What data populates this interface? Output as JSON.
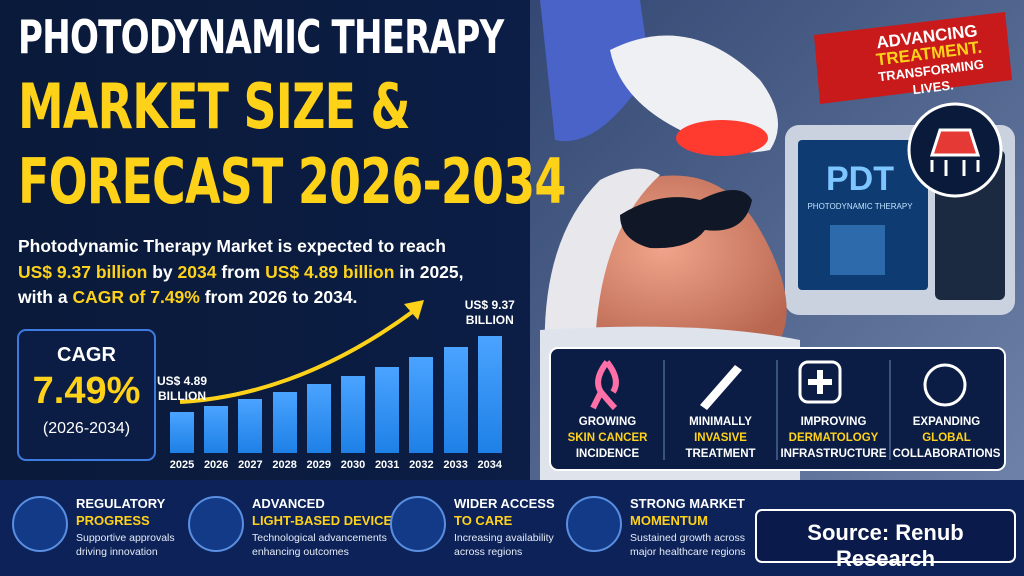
{
  "header": {
    "title_line1": "PHOTODYNAMIC THERAPY",
    "title_line2": "MARKET SIZE &",
    "title_line3": "FORECAST 2026-2034"
  },
  "banner": {
    "line1": "ADVANCING",
    "line2": "TREATMENT.",
    "line3": "TRANSFORMING LIVES."
  },
  "description": {
    "line1": [
      "Photodynamic Therapy Market is expected to reach"
    ],
    "line2": [
      "US$ 9.37 billion",
      " by ",
      "2034",
      " from ",
      "US$ 4.89 billion",
      " in 2025,"
    ],
    "line3": [
      "with a ",
      "CAGR of 7.49%",
      " from 2026 to 2034."
    ]
  },
  "cagr": {
    "label": "CAGR",
    "value": "7.49%",
    "period": "(2026-2034)"
  },
  "chart_data": {
    "type": "bar",
    "categories": [
      "2025",
      "2026",
      "2027",
      "2028",
      "2029",
      "2030",
      "2031",
      "2032",
      "2033",
      "2034"
    ],
    "values": [
      4.89,
      5.26,
      5.65,
      6.07,
      6.53,
      7.02,
      7.54,
      8.11,
      8.72,
      9.37
    ],
    "value_labels": [
      "US$ 4.89 BILLION",
      null,
      null,
      null,
      null,
      null,
      null,
      null,
      null,
      "US$ 9.37 BILLION"
    ],
    "color": "#1e80e6",
    "ylim": [
      2.5,
      9.9
    ]
  },
  "screen": {
    "title": "PDT",
    "subtitle": "PHOTODYNAMIC THERAPY"
  },
  "drivers": [
    {
      "line1": "GROWING",
      "highlight": "SKIN CANCER",
      "line2": "INCIDENCE"
    },
    {
      "line1": "MINIMALLY",
      "highlight": "INVASIVE",
      "line2": "TREATMENT"
    },
    {
      "line1": "IMPROVING",
      "highlight": "DERMATOLOGY",
      "line2": "INFRASTRUCTURE"
    },
    {
      "line1": "EXPANDING",
      "highlight": "GLOBAL",
      "line2": "COLLABORATIONS"
    }
  ],
  "features": [
    {
      "title": "REGULATORY",
      "highlight": "PROGRESS",
      "desc1": "Supportive approvals",
      "desc2": "driving innovation"
    },
    {
      "title": "ADVANCED",
      "highlight": "LIGHT-BASED DEVICES",
      "desc1": "Technological advancements",
      "desc2": "enhancing outcomes"
    },
    {
      "title": "WIDER ACCESS",
      "highlight": "TO CARE",
      "desc1": "Increasing availability",
      "desc2": "across regions"
    },
    {
      "title": "STRONG MARKET",
      "highlight": "MOMENTUM",
      "desc1": "Sustained growth across",
      "desc2": "major healthcare regions"
    }
  ],
  "source": "Source: Renub Research"
}
